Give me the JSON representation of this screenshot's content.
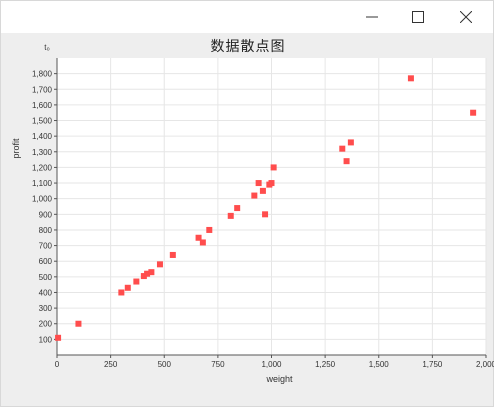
{
  "window": {
    "controls": {
      "minimize": "minimize",
      "maximize": "maximize",
      "close": "close"
    }
  },
  "colors": {
    "point": "#ff4d4d",
    "plot_bg": "#ffffff",
    "grid": "#e6e6e6",
    "panel_bg": "#eeeeee"
  },
  "chart_data": {
    "type": "scatter",
    "title": "数据散点图",
    "xlabel": "weight",
    "ylabel": "profit",
    "y_axis_unit": "t₀",
    "xlim": [
      0,
      2000
    ],
    "ylim": [
      0,
      1900
    ],
    "x_ticks": [
      0,
      250,
      500,
      750,
      1000,
      1250,
      1500,
      1750,
      2000
    ],
    "x_tick_labels": [
      "0",
      "250",
      "500",
      "750",
      "1,000",
      "1,250",
      "1,500",
      "1,750",
      "2,000"
    ],
    "y_ticks": [
      100,
      200,
      300,
      400,
      500,
      600,
      700,
      800,
      900,
      1000,
      1100,
      1200,
      1300,
      1400,
      1500,
      1600,
      1700,
      1800
    ],
    "y_tick_labels": [
      "100",
      "200",
      "300",
      "400",
      "500",
      "600",
      "700",
      "800",
      "900",
      "1,000",
      "1,100",
      "1,200",
      "1,300",
      "1,400",
      "1,500",
      "1,600",
      "1,700",
      "1,800"
    ],
    "grid": true,
    "points": [
      {
        "x": 5,
        "y": 110
      },
      {
        "x": 100,
        "y": 200
      },
      {
        "x": 300,
        "y": 400
      },
      {
        "x": 330,
        "y": 430
      },
      {
        "x": 370,
        "y": 470
      },
      {
        "x": 405,
        "y": 505
      },
      {
        "x": 420,
        "y": 520
      },
      {
        "x": 440,
        "y": 530
      },
      {
        "x": 480,
        "y": 580
      },
      {
        "x": 540,
        "y": 640
      },
      {
        "x": 660,
        "y": 750
      },
      {
        "x": 680,
        "y": 720
      },
      {
        "x": 710,
        "y": 800
      },
      {
        "x": 810,
        "y": 890
      },
      {
        "x": 840,
        "y": 940
      },
      {
        "x": 920,
        "y": 1020
      },
      {
        "x": 940,
        "y": 1100
      },
      {
        "x": 960,
        "y": 1050
      },
      {
        "x": 970,
        "y": 900
      },
      {
        "x": 1000,
        "y": 1100
      },
      {
        "x": 990,
        "y": 1090
      },
      {
        "x": 1010,
        "y": 1200
      },
      {
        "x": 1330,
        "y": 1320
      },
      {
        "x": 1350,
        "y": 1240
      },
      {
        "x": 1370,
        "y": 1360
      },
      {
        "x": 1650,
        "y": 1770
      },
      {
        "x": 1940,
        "y": 1550
      }
    ]
  }
}
